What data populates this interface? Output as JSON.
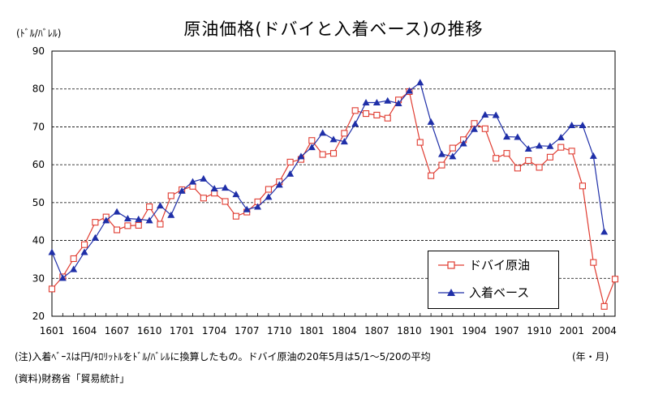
{
  "title": "原油価格(ドバイと入着ベース)の推移",
  "unit_label": "(ﾄﾞﾙ/ﾊﾞﾚﾙ)",
  "x_unit_label": "(年・月)",
  "note": "(注)入着ﾍﾞｰｽは円/ｷﾛﾘｯﾄﾙをﾄﾞﾙ/ﾊﾞﾚﾙに換算したもの。ドバイ原油の20年5月は5/1～5/20の平均",
  "source": "(資料)財務省「貿易統計」",
  "colors": {
    "dubai": "#e03c31",
    "landed": "#1f2fa8",
    "grid": "#000000"
  },
  "chart_data": {
    "type": "line",
    "title": "原油価格(ドバイと入着ベース)の推移",
    "ylabel": "(ﾄﾞﾙ/ﾊﾞﾚﾙ)",
    "xlabel": "(年・月)",
    "ylim": [
      20,
      90
    ],
    "yticks": [
      20,
      30,
      40,
      50,
      60,
      70,
      80,
      90
    ],
    "grid": "horizontal-dashed",
    "legend_position": "bottom-right",
    "x_tick_labels": [
      "1601",
      "1604",
      "1607",
      "1610",
      "1701",
      "1704",
      "1707",
      "1710",
      "1801",
      "1804",
      "1807",
      "1810",
      "1901",
      "1904",
      "1907",
      "1910",
      "2001",
      "2004"
    ],
    "series": [
      {
        "name": "ドバイ原油",
        "marker": "open-square",
        "color": "#e03c31",
        "x_start_index": 0,
        "values": [
          27.2,
          30.4,
          35.2,
          38.9,
          44.8,
          46.2,
          42.8,
          43.9,
          44.0,
          48.9,
          44.3,
          51.8,
          53.4,
          54.3,
          51.2,
          52.5,
          50.3,
          46.4,
          47.5,
          50.2,
          53.5,
          55.5,
          60.7,
          61.4,
          66.4,
          62.7,
          63.0,
          68.3,
          74.3,
          73.5,
          73.1,
          72.3,
          77.1,
          79.3,
          65.9,
          57.1,
          59.9,
          64.4,
          66.6,
          70.9,
          69.5,
          61.7,
          63.0,
          59.1,
          61.1,
          59.3,
          62.0,
          64.6,
          63.6,
          54.4,
          34.2,
          22.6,
          29.8
        ]
      },
      {
        "name": "入着ベース",
        "marker": "filled-triangle",
        "color": "#1f2fa8",
        "x_start_index": 0,
        "values": [
          36.9,
          30.1,
          32.4,
          36.9,
          40.7,
          45.3,
          47.6,
          45.8,
          45.6,
          45.3,
          49.2,
          46.7,
          53.1,
          55.5,
          56.3,
          53.7,
          53.9,
          52.2,
          48.2,
          48.9,
          51.5,
          54.7,
          57.6,
          62.2,
          64.6,
          68.4,
          66.7,
          66.1,
          70.8,
          76.4,
          76.4,
          76.9,
          76.2,
          79.5,
          81.7,
          71.3,
          62.8,
          62.2,
          65.6,
          69.4,
          73.2,
          73.1,
          67.4,
          67.3,
          64.2,
          65.0,
          64.9,
          67.2,
          70.4,
          70.4,
          62.3,
          42.3
        ]
      }
    ]
  }
}
